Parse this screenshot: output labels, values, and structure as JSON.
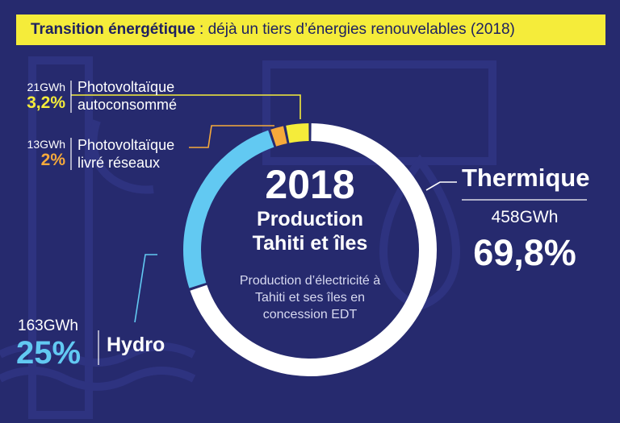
{
  "header": {
    "title_bold": "Transition énergétique",
    "title_rest": " : déjà un tiers d’énergies renouvelables (2018)"
  },
  "center": {
    "year": "2018",
    "line1": "Production",
    "line2": "Tahiti et îles",
    "desc1": "Production d’électricité à",
    "desc2": "Tahiti et ses îles en",
    "desc3": "concession EDT"
  },
  "chart_data": {
    "type": "pie",
    "title": "2018 Production Tahiti et îles",
    "series": [
      {
        "name": "Thermique",
        "value_gwh": 458,
        "percent": 69.8,
        "value_label": "458GWh",
        "percent_label": "69,8%",
        "label": "Thermique",
        "color": "#ffffff"
      },
      {
        "name": "Hydro",
        "value_gwh": 163,
        "percent": 25,
        "value_label": "163GWh",
        "percent_label": "25%",
        "label": "Hydro",
        "color": "#62c9f2"
      },
      {
        "name": "Photovoltaïque livré réseaux",
        "value_gwh": 13,
        "percent": 2,
        "value_label": "13GWh",
        "percent_label": "2%",
        "label_line1": "Photovoltaïque",
        "label_line2": "livré réseaux",
        "color": "#f6a93b"
      },
      {
        "name": "Photovoltaïque autoconsommé",
        "value_gwh": 21,
        "percent": 3.2,
        "value_label": "21GWh",
        "percent_label": "3,2%",
        "label_line1": "Photovoltaïque",
        "label_line2": "autoconsommé",
        "color": "#f5ec3a"
      }
    ]
  }
}
